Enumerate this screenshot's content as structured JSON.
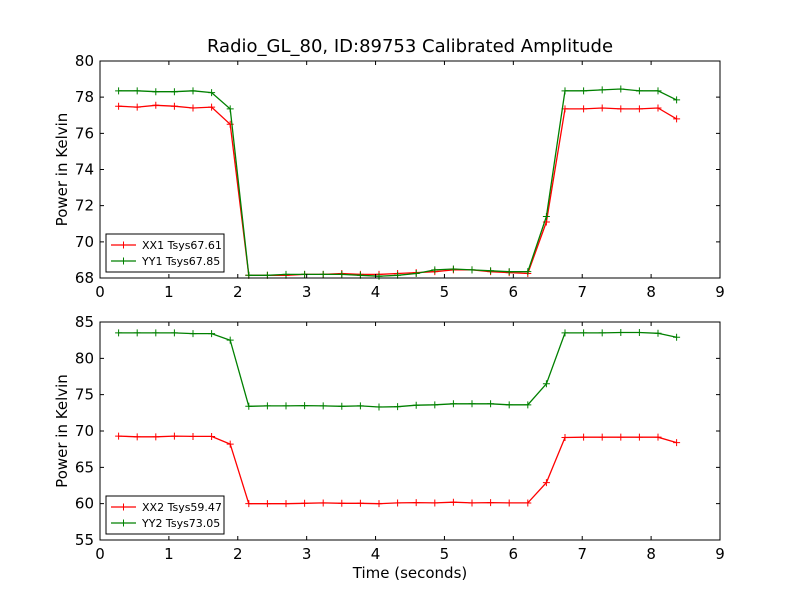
{
  "chart_data": {
    "title": "Radio_GL_80, ID:89753 Calibrated Amplitude",
    "xlabel": "Time (seconds)",
    "colors": {
      "xx": "#ff0000",
      "yy": "#008000",
      "axis": "#000000"
    },
    "subplots": [
      {
        "type": "line",
        "ylabel": "Power in Kelvin",
        "xlim": [
          0,
          9
        ],
        "ylim": [
          68,
          80
        ],
        "xticks": [
          "0",
          "1",
          "2",
          "3",
          "4",
          "5",
          "6",
          "7",
          "8",
          "9"
        ],
        "yticks": [
          "68",
          "70",
          "72",
          "74",
          "76",
          "78",
          "80"
        ],
        "legend_position": "lower-left",
        "x": [
          0.27,
          0.54,
          0.81,
          1.08,
          1.35,
          1.62,
          1.89,
          2.16,
          2.43,
          2.7,
          2.97,
          3.24,
          3.51,
          3.78,
          4.05,
          4.32,
          4.59,
          4.86,
          5.13,
          5.4,
          5.67,
          5.94,
          6.21,
          6.48,
          6.75,
          7.02,
          7.29,
          7.56,
          7.83,
          8.1,
          8.37
        ],
        "series": [
          {
            "name": "XX1 Tsys67.61",
            "color": "#ff0000",
            "values": [
              77.5,
              77.45,
              77.55,
              77.5,
              77.4,
              77.45,
              76.5,
              68.15,
              68.15,
              68.15,
              68.2,
              68.2,
              68.25,
              68.2,
              68.2,
              68.25,
              68.3,
              68.35,
              68.45,
              68.45,
              68.35,
              68.3,
              68.25,
              71.1,
              77.35,
              77.35,
              77.4,
              77.35,
              77.35,
              77.4,
              76.8
            ]
          },
          {
            "name": "YY1 Tsys67.85",
            "color": "#008000",
            "values": [
              78.35,
              78.35,
              78.3,
              78.3,
              78.35,
              78.25,
              77.35,
              68.15,
              68.15,
              68.2,
              68.2,
              68.2,
              68.2,
              68.15,
              68.1,
              68.15,
              68.25,
              68.45,
              68.5,
              68.45,
              68.4,
              68.35,
              68.35,
              71.4,
              78.35,
              78.35,
              78.4,
              78.45,
              78.35,
              78.35,
              77.85
            ]
          }
        ]
      },
      {
        "type": "line",
        "ylabel": "Power in Kelvin",
        "xlim": [
          0,
          9
        ],
        "ylim": [
          55,
          85
        ],
        "xticks": [
          "0",
          "1",
          "2",
          "3",
          "4",
          "5",
          "6",
          "7",
          "8",
          "9"
        ],
        "yticks": [
          "55",
          "60",
          "65",
          "70",
          "75",
          "80",
          "85"
        ],
        "legend_position": "lower-left",
        "x": [
          0.27,
          0.54,
          0.81,
          1.08,
          1.35,
          1.62,
          1.89,
          2.16,
          2.43,
          2.7,
          2.97,
          3.24,
          3.51,
          3.78,
          4.05,
          4.32,
          4.59,
          4.86,
          5.13,
          5.4,
          5.67,
          5.94,
          6.21,
          6.48,
          6.75,
          7.02,
          7.29,
          7.56,
          7.83,
          8.1,
          8.37
        ],
        "series": [
          {
            "name": "XX2 Tsys59.47",
            "color": "#ff0000",
            "values": [
              69.3,
              69.2,
              69.2,
              69.3,
              69.25,
              69.25,
              68.2,
              60.0,
              60.0,
              60.0,
              60.05,
              60.1,
              60.05,
              60.05,
              60.0,
              60.1,
              60.15,
              60.1,
              60.2,
              60.1,
              60.15,
              60.1,
              60.1,
              62.9,
              69.1,
              69.15,
              69.15,
              69.15,
              69.15,
              69.15,
              68.4
            ]
          },
          {
            "name": "YY2 Tsys73.05",
            "color": "#008000",
            "values": [
              83.5,
              83.5,
              83.5,
              83.5,
              83.4,
              83.4,
              82.5,
              73.4,
              73.45,
              73.45,
              73.5,
              73.45,
              73.4,
              73.45,
              73.3,
              73.35,
              73.55,
              73.6,
              73.75,
              73.75,
              73.75,
              73.6,
              73.6,
              76.5,
              83.5,
              83.5,
              83.5,
              83.55,
              83.55,
              83.45,
              82.9
            ]
          }
        ]
      }
    ]
  }
}
